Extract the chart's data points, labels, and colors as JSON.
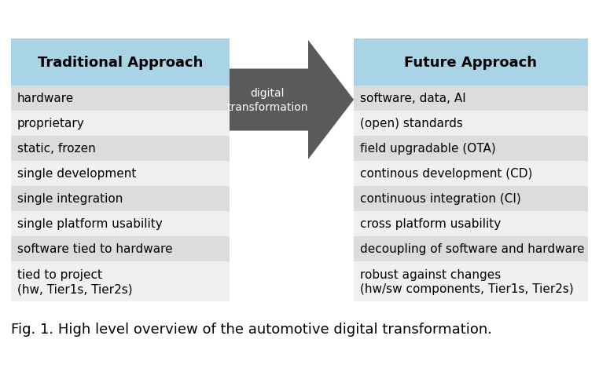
{
  "background_color": "#ffffff",
  "header_bg": "#a8d4e6",
  "row_bg_dark": "#dcdcdc",
  "row_bg_light": "#f0f0f0",
  "arrow_color": "#5a5a5a",
  "left_header": "Traditional Approach",
  "right_header": "Future Approach",
  "arrow_label": "digital\ntransformation",
  "left_items": [
    "hardware",
    "proprietary",
    "static, frozen",
    "single development",
    "single integration",
    "single platform usability",
    "software tied to hardware",
    "tied to project\n(hw, Tier1s, Tier2s)"
  ],
  "right_items": [
    "software, data, AI",
    "(open) standards",
    "field upgradable (OTA)",
    "continous development (CD)",
    "continuous integration (CI)",
    "cross platform usability",
    "decoupling of software and hardware",
    "robust against changes\n(hw/sw components, Tier1s, Tier2s)"
  ],
  "shaded_rows": [
    0,
    2,
    4,
    6
  ],
  "caption": "Fig. 1. High level overview of the automotive digital transformation.",
  "header_fontsize": 13,
  "row_fontsize": 11,
  "caption_fontsize": 13,
  "arrow_label_fontsize": 10
}
